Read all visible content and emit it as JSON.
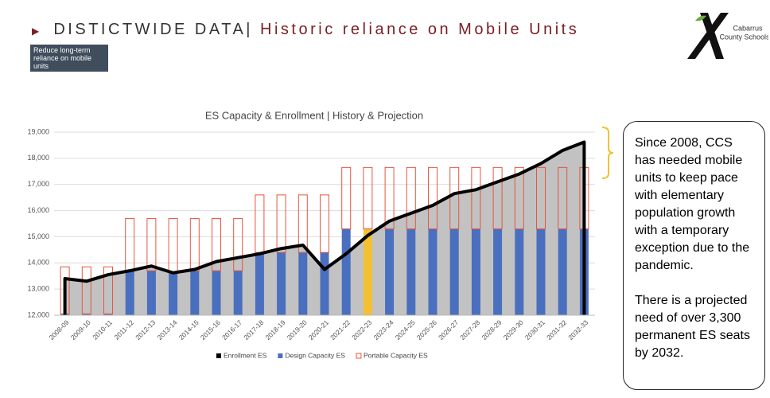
{
  "header": {
    "section": "DISTICTWIDE DATA|",
    "title": "Historic reliance on Mobile Units"
  },
  "badge": "Reduce long-term reliance on mobile units",
  "logo": {
    "line1": "Cabarrus",
    "line2": "County Schools"
  },
  "callout": [
    "Since 2008, CCS has needed mobile units to keep pace with elementary population growth with a temporary exception due to the pandemic.",
    "There is a projected need of over 3,300 permanent ES seats by 2032."
  ],
  "chart_data": {
    "type": "combo",
    "title": "ES Capacity & Enrollment | History & Projection",
    "categories": [
      "2008-09",
      "2009-10",
      "2010-11",
      "2011-12",
      "2012-13",
      "2013-14",
      "2014-15",
      "2015-16",
      "2016-17",
      "2017-18",
      "2018-19",
      "2019-20",
      "2020-21",
      "2021-22",
      "2022-23",
      "2023-24",
      "2024-25",
      "2025-26",
      "2026-27",
      "2027-28",
      "2028-29",
      "2029-30",
      "2030-31",
      "2031-32",
      "2032-33"
    ],
    "series": [
      {
        "name": "Enrollment ES",
        "kind": "area-line",
        "color": "#000000",
        "area_color": "#c2c2c2",
        "values": [
          13400,
          13300,
          13550,
          13700,
          13880,
          13620,
          13750,
          14050,
          14200,
          14350,
          14550,
          14680,
          13750,
          14350,
          15050,
          15600,
          15900,
          16200,
          16650,
          16800,
          17100,
          17400,
          17800,
          18300,
          18620
        ]
      },
      {
        "name": "Design Capacity ES",
        "kind": "bar",
        "color": "#4a6fbe",
        "colors": [
          "#4a6fbe",
          "#4a6fbe",
          "#4a6fbe",
          "#4a6fbe",
          "#4a6fbe",
          "#4a6fbe",
          "#4a6fbe",
          "#4a6fbe",
          "#4a6fbe",
          "#4a6fbe",
          "#4a6fbe",
          "#4a6fbe",
          "#4a6fbe",
          "#4a6fbe",
          "#f4c033",
          "#4a6fbe",
          "#4a6fbe",
          "#4a6fbe",
          "#4a6fbe",
          "#4a6fbe",
          "#4a6fbe",
          "#4a6fbe",
          "#4a6fbe",
          "#4a6fbe",
          "#4a6fbe"
        ],
        "values": [
          12050,
          12050,
          12050,
          13700,
          13700,
          13600,
          13700,
          13700,
          13700,
          14400,
          14400,
          14400,
          14400,
          15300,
          15300,
          15300,
          15300,
          15300,
          15300,
          15300,
          15300,
          15300,
          15300,
          15300,
          15300
        ]
      },
      {
        "name": "Portable Capacity ES",
        "kind": "stacked-outline",
        "color": "#e8553e",
        "values": [
          1800,
          1800,
          1800,
          2000,
          2000,
          2100,
          2000,
          2000,
          2000,
          2200,
          2200,
          2200,
          2200,
          2350,
          2350,
          2350,
          2350,
          2350,
          2350,
          2350,
          2350,
          2350,
          2350,
          2350,
          2350
        ]
      }
    ],
    "ylim": [
      12000,
      19000
    ],
    "yticks": [
      {
        "value": 12000,
        "label": "12,000"
      },
      {
        "value": 13000,
        "label": "13,000"
      },
      {
        "value": 14000,
        "label": "14,000"
      },
      {
        "value": 15000,
        "label": "15,000"
      },
      {
        "value": 16000,
        "label": "16,000"
      },
      {
        "value": 17000,
        "label": "17,000"
      },
      {
        "value": 18000,
        "label": "18,000"
      },
      {
        "value": 19000,
        "label": "19,000"
      }
    ],
    "grid": true,
    "legend": "bottom"
  }
}
